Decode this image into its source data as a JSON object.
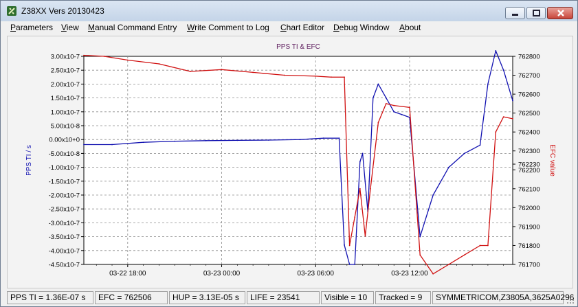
{
  "window": {
    "title": "Z38XX Vers 20130423",
    "icon": "satellite-icon"
  },
  "menu": [
    {
      "label": "Parameters"
    },
    {
      "label": "View"
    },
    {
      "label": "Manual Command Entry"
    },
    {
      "label": "Write Comment to Log"
    },
    {
      "label": "Chart Editor"
    },
    {
      "label": "Debug Window"
    },
    {
      "label": "About"
    }
  ],
  "chart_data": {
    "type": "line",
    "title": "PPS TI & EFC",
    "ylabel": "PPS TI / s",
    "y2label": "EFC value",
    "ylim": [
      -4.5e-07,
      3e-07
    ],
    "y2lim": [
      761700,
      762800
    ],
    "xlim": [
      "03-22 15:12",
      "03-23 18:35"
    ],
    "y_tick_labels": [
      "3.00x10-7",
      "2.50x10-7",
      "2.00x10-7",
      "1.50x10-7",
      "1.00x10-7",
      "5.00x10-8",
      "0.00x10+0",
      "-5.00x10-8",
      "-1.00x10-7",
      "-1.50x10-7",
      "-2.00x10-7",
      "-2.50x10-7",
      "-3.00x10-7",
      "-3.50x10-7",
      "-4.00x10-7",
      "-4.50x10-7"
    ],
    "y2_tick_labels": [
      "762800",
      "762700",
      "762600",
      "762500",
      "762400",
      "762300",
      "762230",
      "762200",
      "762100",
      "762000",
      "761900",
      "761800",
      "761700"
    ],
    "x_tick_labels": [
      "03-22 18:00",
      "03-23 00:00",
      "03-23 06:00",
      "03-23 12:00"
    ],
    "grid": true,
    "series": [
      {
        "name": "PPS TI",
        "axis": "left",
        "color": "#1010b0",
        "x": [
          "03-22 15:12",
          "03-22 17:00",
          "03-22 19:00",
          "03-22 21:00",
          "03-22 23:00",
          "03-23 01:00",
          "03-23 03:00",
          "03-23 05:00",
          "03-23 06:30",
          "03-23 07:30",
          "03-23 07:50",
          "03-23 08:10",
          "03-23 08:30",
          "03-23 08:50",
          "03-23 09:00",
          "03-23 09:20",
          "03-23 09:40",
          "03-23 10:00",
          "03-23 10:30",
          "03-23 11:00",
          "03-23 11:30",
          "03-23 12:00",
          "03-23 12:40",
          "03-23 13:30",
          "03-23 14:30",
          "03-23 15:30",
          "03-23 16:30",
          "03-23 17:00",
          "03-23 17:30",
          "03-23 18:00",
          "03-23 18:35"
        ],
        "values": [
          -1.8e-08,
          -1.8e-08,
          -1e-08,
          -6e-09,
          -4e-09,
          -3e-09,
          -2e-09,
          0,
          5e-09,
          5e-09,
          -3.8e-07,
          -4.5e-07,
          -4.5e-07,
          -8e-08,
          -5e-08,
          -2.6e-07,
          1.5e-07,
          2e-07,
          1.5e-07,
          1e-07,
          9e-08,
          8e-08,
          -3.5e-07,
          -2e-07,
          -1e-07,
          -5e-08,
          -2e-08,
          2e-07,
          3.2e-07,
          2.5e-07,
          1.4e-07
        ]
      },
      {
        "name": "EFC",
        "axis": "right",
        "color": "#d01010",
        "x": [
          "03-22 15:12",
          "03-22 16:30",
          "03-22 18:00",
          "03-22 20:00",
          "03-22 22:00",
          "03-23 00:00",
          "03-23 02:00",
          "03-23 04:00",
          "03-23 06:00",
          "03-23 07:00",
          "03-23 07:50",
          "03-23 08:10",
          "03-23 08:30",
          "03-23 08:50",
          "03-23 09:10",
          "03-23 09:30",
          "03-23 10:00",
          "03-23 10:30",
          "03-23 11:00",
          "03-23 12:00",
          "03-23 12:40",
          "03-23 13:30",
          "03-23 14:30",
          "03-23 15:30",
          "03-23 16:30",
          "03-23 17:00",
          "03-23 17:30",
          "03-23 18:00",
          "03-23 18:35"
        ],
        "values": [
          762805,
          762800,
          762780,
          762760,
          762720,
          762730,
          762715,
          762700,
          762695,
          762690,
          762690,
          761800,
          761950,
          762100,
          761850,
          762100,
          762450,
          762550,
          762540,
          762530,
          761750,
          761650,
          761700,
          761750,
          761800,
          761800,
          762400,
          762480,
          762470
        ]
      }
    ]
  },
  "status": [
    {
      "label": "PPS TI = 1.36E-07 s"
    },
    {
      "label": "EFC = 762506"
    },
    {
      "label": "HUP = 3.13E-05 s"
    },
    {
      "label": "LIFE = 23541"
    },
    {
      "label": "Visible = 10"
    },
    {
      "label": "Tracked = 9"
    },
    {
      "label": "SYMMETRICOM,Z3805A,3625A0296"
    }
  ]
}
